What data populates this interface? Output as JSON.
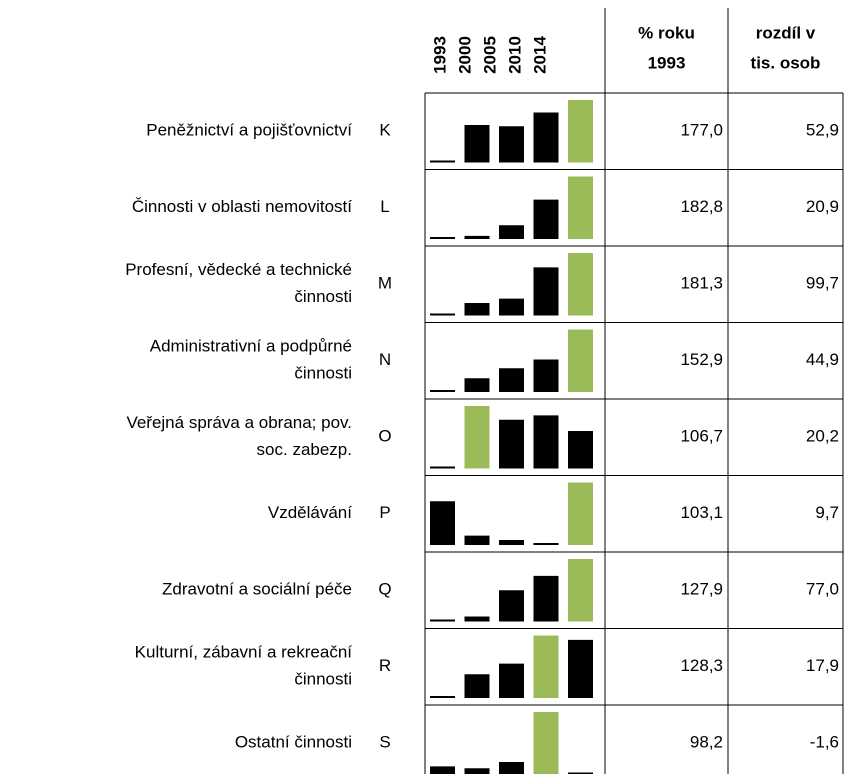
{
  "header": {
    "years": [
      "1993",
      "2000",
      "2005",
      "2010",
      "2014"
    ],
    "pct": [
      "% roku",
      "1993"
    ],
    "diff": [
      "rozdíl v",
      "tis. osob"
    ]
  },
  "bar_color": "#000000",
  "highlight_color": "#9bbb59",
  "rows": [
    {
      "label": [
        "Peněžnictví a pojišťovnictví"
      ],
      "code": "K",
      "bars": [
        0,
        60,
        58,
        80,
        100
      ],
      "pct": "177,0",
      "diff": "52,9"
    },
    {
      "label": [
        "Činnosti v oblasti nemovitostí"
      ],
      "code": "L",
      "bars": [
        0,
        5,
        22,
        63,
        100
      ],
      "pct": "182,8",
      "diff": "20,9"
    },
    {
      "label": [
        "Profesní, vědecké a technické",
        "činnosti"
      ],
      "code": "M",
      "bars": [
        0,
        20,
        27,
        77,
        100
      ],
      "pct": "181,3",
      "diff": "99,7"
    },
    {
      "label": [
        "Administrativní a podpůrné",
        "činnosti"
      ],
      "code": "N",
      "bars": [
        0,
        22,
        38,
        52,
        100
      ],
      "pct": "152,9",
      "diff": "44,9"
    },
    {
      "label": [
        "Veřejná správa a obrana; pov.",
        "soc. zabezp."
      ],
      "code": "O",
      "bars": [
        0,
        100,
        78,
        85,
        60
      ],
      "pct": "106,7",
      "diff": "20,2"
    },
    {
      "label": [
        "Vzdělávání"
      ],
      "code": "P",
      "bars": [
        70,
        15,
        8,
        0,
        100
      ],
      "pct": "103,1",
      "diff": "9,7"
    },
    {
      "label": [
        "Zdravotní a sociální péče"
      ],
      "code": "Q",
      "bars": [
        0,
        8,
        50,
        73,
        100
      ],
      "pct": "127,9",
      "diff": "77,0"
    },
    {
      "label": [
        "Kulturní, zábavní a rekreační",
        "činnosti"
      ],
      "code": "R",
      "bars": [
        0,
        38,
        55,
        100,
        93
      ],
      "pct": "128,3",
      "diff": "17,9"
    },
    {
      "label": [
        "Ostatní činnosti"
      ],
      "code": "S",
      "bars": [
        13,
        10,
        20,
        100,
        0
      ],
      "pct": "98,2",
      "diff": "-1,6"
    }
  ]
}
